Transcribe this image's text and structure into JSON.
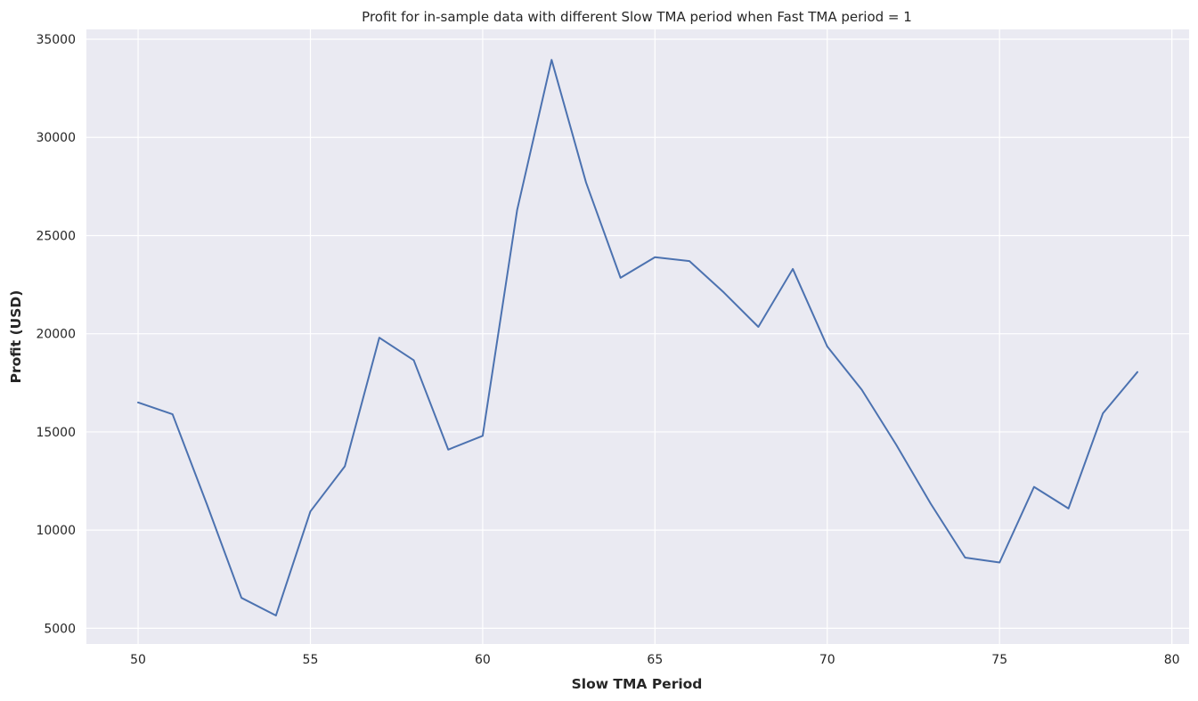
{
  "chart_data": {
    "type": "line",
    "title": "Profit for in-sample data with different Slow TMA period when Fast TMA period = 1",
    "xlabel": "Slow TMA Period",
    "ylabel": "Profit (USD)",
    "xlim": [
      48.5,
      80.5
    ],
    "ylim": [
      4200,
      35500
    ],
    "xticks": [
      50,
      55,
      60,
      65,
      70,
      75,
      80
    ],
    "yticks": [
      5000,
      10000,
      15000,
      20000,
      25000,
      30000,
      35000
    ],
    "grid": true,
    "colors": {
      "background": "#eaeaf2",
      "grid": "#ffffff",
      "line": "#4c72b0"
    },
    "series": [
      {
        "x": [
          50,
          51,
          52,
          53,
          54,
          55,
          56,
          57,
          58,
          59,
          60,
          61,
          62,
          63,
          64,
          65,
          66,
          67,
          68,
          69,
          70,
          71,
          72,
          73,
          74,
          75,
          76,
          77,
          78,
          79
        ],
        "values": [
          16500,
          15900,
          11300,
          6550,
          5650,
          10950,
          13250,
          19800,
          18650,
          14100,
          14800,
          26300,
          33950,
          27700,
          22850,
          23900,
          23700,
          22100,
          20350,
          23300,
          19350,
          17150,
          14350,
          11350,
          8600,
          8350,
          12200,
          11100,
          15950,
          18050
        ]
      }
    ]
  }
}
